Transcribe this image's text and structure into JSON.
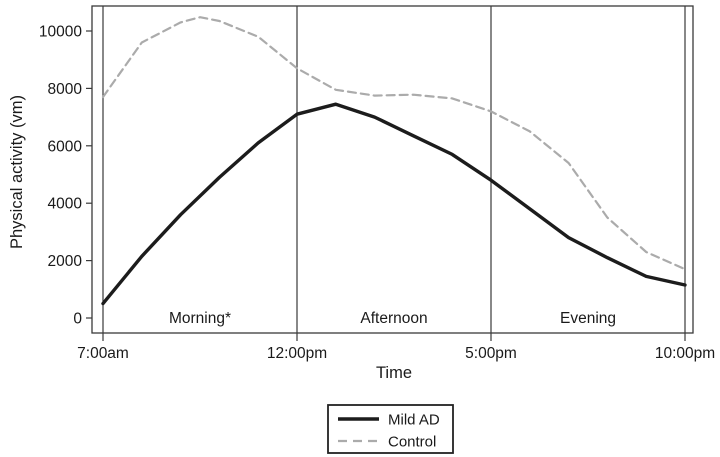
{
  "figure": {
    "background": "#ffffff",
    "frame_color": "#3a3a3a"
  },
  "chart_data": {
    "type": "line",
    "title": "",
    "xlabel": "Time",
    "ylabel": "Physical activity (vm)",
    "ylim": [
      0,
      10000
    ],
    "yticks": [
      0,
      2000,
      4000,
      6000,
      8000,
      10000
    ],
    "ytick_labels": [
      "0",
      "2000",
      "4000",
      "6000",
      "8000",
      "10000"
    ],
    "x_axis_hours_range": [
      7,
      22
    ],
    "xticks_hours": [
      7,
      12,
      17,
      22
    ],
    "xtick_labels": [
      "7:00am",
      "12:00pm",
      "5:00pm",
      "10:00pm"
    ],
    "grid": "vertical divider lines at each x tick, full plot frame box",
    "periods": [
      {
        "label": "Morning*",
        "start_hour": 7,
        "end_hour": 12
      },
      {
        "label": "Afternoon",
        "start_hour": 12,
        "end_hour": 17
      },
      {
        "label": "Evening",
        "start_hour": 17,
        "end_hour": 22
      }
    ],
    "series": [
      {
        "name": "Mild AD",
        "style": "solid",
        "color": "#1c1c1c",
        "width": 3.4,
        "x_hours": [
          7,
          8,
          9,
          10,
          11,
          12,
          13,
          14,
          15,
          16,
          17,
          18,
          19,
          20,
          21,
          22
        ],
        "values": [
          500,
          2150,
          3600,
          4900,
          6100,
          7100,
          7450,
          7000,
          6350,
          5700,
          4800,
          3800,
          2800,
          2100,
          1450,
          1150
        ]
      },
      {
        "name": "Control",
        "style": "dashed",
        "color": "#ababab",
        "width": 2.2,
        "x_hours": [
          7,
          8,
          9,
          9.5,
          10,
          11,
          12,
          13,
          14,
          15,
          16,
          17,
          18,
          19,
          20,
          21,
          22
        ],
        "values": [
          7700,
          9600,
          10300,
          10480,
          10350,
          9800,
          8700,
          7950,
          7750,
          7780,
          7650,
          7200,
          6500,
          5400,
          3500,
          2300,
          1700
        ]
      }
    ],
    "legend": {
      "position": "bottom-center",
      "entries": [
        "Mild AD",
        "Control"
      ]
    }
  }
}
